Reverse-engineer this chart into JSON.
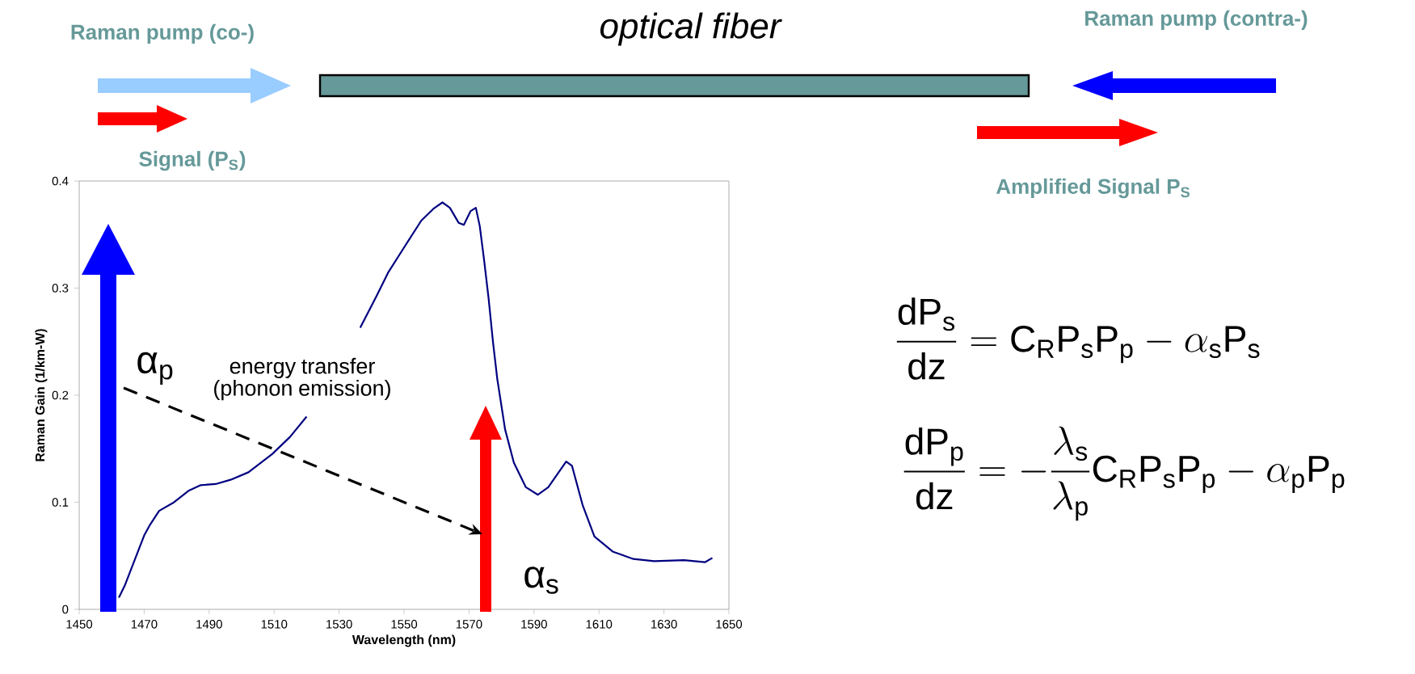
{
  "chart_data": {
    "type": "line",
    "xlabel": "Wavelength (nm)",
    "ylabel": "Raman Gain (1/km-W)",
    "x": [
      1462.2,
      1464.0,
      1467.2,
      1470.0,
      1471.8,
      1474.6,
      1479.2,
      1483.8,
      1487.4,
      1492.0,
      1496.6,
      1502.1,
      1509.4,
      1514.9,
      1520.0,
      1528.0,
      1536.5,
      1541.6,
      1545.2,
      1549.8,
      1555.3,
      1559.0,
      1561.8,
      1564.1,
      1566.8,
      1568.4,
      1570.5,
      1572.1,
      1573.3,
      1574.6,
      1576.0,
      1577.4,
      1578.7,
      1581.1,
      1583.8,
      1587.5,
      1591.2,
      1594.4,
      1597.6,
      1599.9,
      1601.7,
      1605.0,
      1608.6,
      1614.2,
      1620.6,
      1627.0,
      1636.2,
      1642.6,
      1644.9
    ],
    "series": [
      {
        "color": "#000080",
        "values": [
          0.011,
          0.022,
          0.047,
          0.069,
          0.079,
          0.092,
          0.1,
          0.111,
          0.116,
          0.117,
          0.121,
          0.128,
          0.145,
          0.161,
          0.18,
          null,
          0.263,
          0.293,
          0.315,
          0.337,
          0.363,
          0.374,
          0.38,
          0.375,
          0.361,
          0.359,
          0.372,
          0.375,
          0.358,
          0.327,
          0.291,
          0.249,
          0.215,
          0.168,
          0.137,
          0.114,
          0.107,
          0.114,
          0.128,
          0.138,
          0.134,
          0.097,
          0.068,
          0.054,
          0.047,
          0.045,
          0.046,
          0.044,
          0.048
        ]
      }
    ],
    "xlim": [
      1450,
      1650
    ],
    "ylim": [
      0,
      0.4
    ],
    "xticks": [
      1450,
      1470,
      1490,
      1510,
      1530,
      1550,
      1570,
      1590,
      1610,
      1630,
      1650
    ],
    "yticks": [
      0,
      0.1,
      0.2,
      0.3,
      0.4
    ],
    "annotations": [
      "optical fiber",
      "Raman pump (co-)",
      "Raman pump (contra-)",
      "Signal (P$_{S}$)",
      "Amplified Signal P$_{S}$",
      "α$_{p}$",
      "energy transfer (phonon emission)",
      "α$_{s}$",
      "\\frac{\\mathsf{dP_s}}{\\mathsf{dz}} = \\mathsf{C_R P_s P_p} - \\alpha_{\\mathsf{s}}\\mathsf{P_s}",
      "\\frac{\\mathsf{dP_p}}{\\mathsf{dz}} = -\\frac{\\lambda_{\\mathsf{s}}}{\\lambda_{\\mathsf{p}}}\\mathsf{C_R P_s P_p} - \\alpha_{\\mathsf{p}}\\mathsf{P_p}"
    ]
  }
}
